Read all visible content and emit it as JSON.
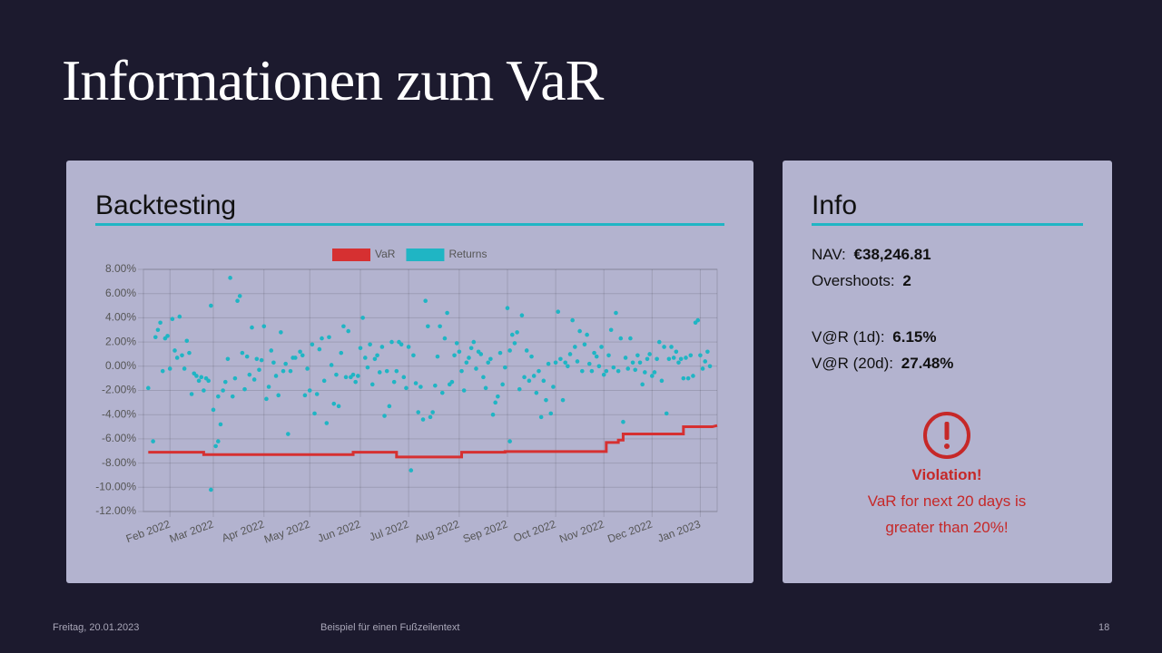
{
  "title": "Informationen zum VaR",
  "backtesting": {
    "heading": "Backtesting"
  },
  "chart_data": {
    "type": "line",
    "xlim": [
      0,
      238
    ],
    "xticks": [
      {
        "value": 11,
        "label": "Feb 2022"
      },
      {
        "value": 29,
        "label": "Mar 2022"
      },
      {
        "value": 50,
        "label": "Apr 2022"
      },
      {
        "value": 69,
        "label": "May 2022"
      },
      {
        "value": 90,
        "label": "Jun 2022"
      },
      {
        "value": 110,
        "label": "Jul 2022"
      },
      {
        "value": 131,
        "label": "Aug 2022"
      },
      {
        "value": 151,
        "label": "Sep 2022"
      },
      {
        "value": 171,
        "label": "Oct 2022"
      },
      {
        "value": 191,
        "label": "Nov 2022"
      },
      {
        "value": 211,
        "label": "Dec 2022"
      },
      {
        "value": 231,
        "label": "Jan 2023"
      }
    ],
    "ylim": [
      -12,
      8
    ],
    "yticks": [
      {
        "value": 8,
        "label": "8.00%"
      },
      {
        "value": 6,
        "label": "6.00%"
      },
      {
        "value": 4,
        "label": "4.00%"
      },
      {
        "value": 2,
        "label": "2.00%"
      },
      {
        "value": 0,
        "label": "0.00%"
      },
      {
        "value": -2,
        "label": "-2.00%"
      },
      {
        "value": -4,
        "label": "-4.00%"
      },
      {
        "value": -6,
        "label": "-6.00%"
      },
      {
        "value": -8,
        "label": "-8.00%"
      },
      {
        "value": -10,
        "label": "-10.00%"
      },
      {
        "value": -12,
        "label": "-12.00%"
      }
    ],
    "grid": true,
    "legend": "top",
    "series": [
      {
        "name": "VaR",
        "color": "#d63031",
        "type": "line",
        "x": [
          2,
          25,
          25,
          87,
          87,
          105,
          105,
          132,
          132,
          150,
          150,
          192,
          192,
          197,
          197,
          199,
          199,
          224,
          224,
          236,
          238
        ],
        "values": [
          -7.1,
          -7.1,
          -7.3,
          -7.3,
          -7.1,
          -7.1,
          -7.5,
          -7.5,
          -7.1,
          -7.1,
          -7.05,
          -7.05,
          -6.3,
          -6.3,
          -6.1,
          -6.1,
          -5.6,
          -5.6,
          -5.0,
          -5.0,
          -4.9
        ]
      },
      {
        "name": "Returns",
        "color": "#1fb5c4",
        "type": "scatter",
        "x": [
          2,
          4,
          5,
          6,
          7,
          8,
          9,
          10,
          11,
          12,
          13,
          14,
          15,
          16,
          17,
          18,
          19,
          20,
          21,
          22,
          23,
          24,
          25,
          26,
          27,
          28,
          28,
          29,
          30,
          31,
          31,
          32,
          33,
          34,
          35,
          36,
          37,
          38,
          39,
          40,
          41,
          42,
          43,
          44,
          45,
          46,
          47,
          48,
          49,
          50,
          51,
          52,
          53,
          54,
          55,
          56,
          57,
          58,
          59,
          60,
          61,
          62,
          63,
          65,
          66,
          67,
          68,
          69,
          70,
          71,
          72,
          73,
          74,
          75,
          76,
          77,
          78,
          79,
          80,
          81,
          82,
          83,
          84,
          85,
          86,
          87,
          88,
          89,
          90,
          91,
          92,
          93,
          94,
          95,
          96,
          97,
          98,
          99,
          100,
          101,
          102,
          103,
          104,
          105,
          106,
          107,
          108,
          109,
          110,
          111,
          112,
          113,
          114,
          115,
          116,
          117,
          118,
          119,
          120,
          121,
          122,
          123,
          124,
          125,
          126,
          127,
          128,
          129,
          130,
          131,
          132,
          133,
          134,
          135,
          136,
          137,
          138,
          139,
          140,
          141,
          142,
          143,
          144,
          145,
          146,
          147,
          148,
          149,
          150,
          151,
          152,
          152,
          153,
          154,
          155,
          156,
          157,
          158,
          159,
          160,
          161,
          162,
          163,
          164,
          165,
          166,
          167,
          168,
          169,
          170,
          171,
          172,
          173,
          174,
          175,
          176,
          177,
          178,
          179,
          180,
          181,
          182,
          183,
          184,
          185,
          186,
          187,
          188,
          189,
          190,
          191,
          192,
          193,
          194,
          195,
          196,
          197,
          198,
          199,
          200,
          201,
          202,
          203,
          204,
          205,
          206,
          207,
          208,
          209,
          210,
          211,
          212,
          213,
          214,
          215,
          216,
          217,
          218,
          219,
          220,
          221,
          222,
          223,
          224,
          225,
          226,
          227,
          228,
          229,
          230,
          231,
          232,
          233,
          234,
          235
        ],
        "values": [
          -1.8,
          -6.2,
          2.4,
          3.0,
          3.6,
          -0.4,
          2.3,
          2.5,
          -0.2,
          3.9,
          1.3,
          0.7,
          4.1,
          0.9,
          -0.2,
          2.1,
          1.1,
          -2.3,
          -0.6,
          -0.8,
          -1.2,
          -0.9,
          -2.0,
          -1.0,
          -1.2,
          -10.2,
          5.0,
          -3.6,
          -6.6,
          -2.5,
          -6.2,
          -4.8,
          -2.0,
          -1.3,
          0.6,
          7.3,
          -2.5,
          -1.0,
          5.4,
          5.8,
          1.1,
          -1.9,
          0.8,
          -0.7,
          3.2,
          -1.1,
          0.6,
          -0.3,
          0.5,
          3.3,
          -2.7,
          -1.7,
          1.3,
          0.3,
          -0.8,
          -2.4,
          2.8,
          -0.4,
          0.2,
          -5.6,
          -0.4,
          0.7,
          0.7,
          1.2,
          0.9,
          -2.4,
          -0.2,
          -2.0,
          1.8,
          -3.9,
          -2.3,
          1.4,
          2.3,
          -1.2,
          -4.7,
          2.4,
          0.1,
          -3.1,
          -0.7,
          -3.3,
          1.1,
          3.3,
          -0.9,
          2.9,
          -0.9,
          -0.7,
          -1.3,
          -0.8,
          1.5,
          4.0,
          0.7,
          -0.1,
          1.8,
          -1.5,
          0.6,
          0.9,
          -0.5,
          1.6,
          -4.1,
          -0.4,
          -3.3,
          2.0,
          -1.3,
          -0.4,
          2.0,
          1.8,
          -0.9,
          -1.8,
          1.6,
          -8.6,
          0.9,
          -1.4,
          -3.8,
          -1.7,
          -4.4,
          5.4,
          3.3,
          -4.2,
          -3.8,
          -1.6,
          0.8,
          3.3,
          -2.2,
          2.3,
          4.4,
          -1.5,
          -1.3,
          0.9,
          1.9,
          1.2,
          -0.4,
          -2.0,
          0.3,
          0.7,
          1.5,
          2.0,
          -0.2,
          1.2,
          1.0,
          -0.9,
          -1.8,
          0.3,
          0.6,
          -4.0,
          -3.0,
          -2.5,
          1.1,
          -1.5,
          -0.1,
          4.8,
          -6.2,
          1.3,
          2.6,
          1.9,
          2.8,
          -1.9,
          4.2,
          -0.9,
          1.3,
          -1.2,
          0.8,
          -0.8,
          -2.2,
          -0.4,
          -4.2,
          -1.2,
          -2.8,
          0.2,
          -3.9,
          -1.7,
          0.3,
          4.5,
          0.6,
          -2.8,
          0.3,
          0.0,
          1.0,
          3.8,
          1.6,
          0.4,
          2.9,
          -0.4,
          1.8,
          2.6,
          0.2,
          -0.4,
          1.1,
          0.8,
          0.0,
          1.6,
          -0.7,
          -0.4,
          0.9,
          3.0,
          -0.1,
          4.4,
          -0.4,
          2.3,
          -4.6,
          0.7,
          -0.2,
          2.3,
          0.3,
          -0.3,
          0.9,
          0.3,
          -1.5,
          -0.5,
          0.6,
          1.0,
          -0.8,
          -0.5,
          0.6,
          2.0,
          -1.2,
          1.6,
          -3.9,
          0.6,
          1.6,
          0.7,
          1.2,
          0.3,
          0.6,
          -1.0,
          0.7,
          -1.0,
          0.9,
          -0.8,
          3.6,
          3.8,
          0.9,
          -0.2,
          0.4,
          1.2,
          0.0
        ]
      }
    ]
  },
  "info": {
    "heading": "Info",
    "nav": {
      "label": "NAV:",
      "value": "€38,246.81"
    },
    "overshoots": {
      "label": "Overshoots:",
      "value": "2"
    },
    "var_1d": {
      "label": "V@R (1d):",
      "value": "6.15%"
    },
    "var_20d": {
      "label": "V@R (20d):",
      "value": "27.48%"
    },
    "violation": {
      "title": "Violation!",
      "text": "VaR for next 20 days is greater than 20%!"
    }
  },
  "footer": {
    "date": "Freitag, 20.01.2023",
    "text": "Beispiel für einen Fußzeilentext",
    "page": "18"
  }
}
